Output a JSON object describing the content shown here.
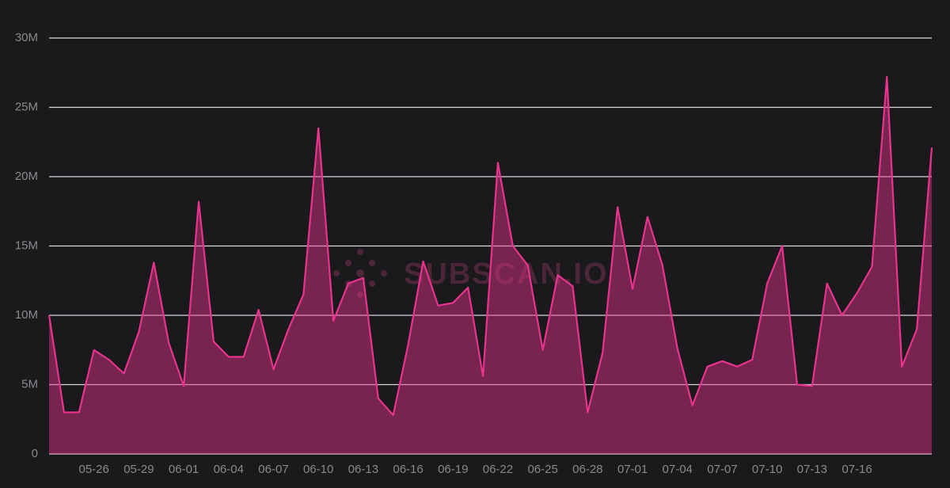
{
  "chart_data": {
    "type": "area",
    "watermark": "SUBSCAN.IO",
    "categories": [
      null,
      null,
      null,
      "05-26",
      null,
      null,
      "05-29",
      null,
      null,
      "06-01",
      null,
      null,
      "06-04",
      null,
      null,
      "06-07",
      null,
      null,
      "06-10",
      null,
      null,
      "06-13",
      null,
      null,
      "06-16",
      null,
      null,
      "06-19",
      null,
      null,
      "06-22",
      null,
      null,
      "06-25",
      null,
      null,
      "06-28",
      null,
      null,
      "07-01",
      null,
      null,
      "07-04",
      null,
      null,
      "07-07",
      null,
      null,
      "07-10",
      null,
      null,
      "07-13",
      null,
      null,
      "07-16",
      null,
      null,
      null,
      null,
      null
    ],
    "series": [
      {
        "color": "#e8338f",
        "values": [
          10000000,
          3000000,
          3000000,
          7500000,
          6800000,
          5800000,
          8800000,
          13800000,
          8000000,
          4900000,
          18200000,
          8100000,
          7000000,
          7000000,
          10400000,
          6100000,
          9000000,
          11500000,
          23500000,
          9600000,
          12300000,
          12700000,
          4000000,
          2800000,
          7900000,
          13900000,
          10700000,
          10900000,
          12000000,
          5600000,
          21000000,
          15000000,
          13600000,
          7500000,
          12900000,
          12100000,
          3000000,
          7300000,
          17800000,
          11900000,
          17100000,
          13600000,
          7600000,
          3500000,
          6300000,
          6700000,
          6300000,
          6800000,
          12300000,
          15000000,
          5000000,
          4900000,
          12300000,
          10000000,
          11600000,
          13500000,
          27200000,
          6300000,
          9000000,
          22100000
        ]
      }
    ],
    "ylim": [
      0,
      30000000
    ],
    "yticks": [
      {
        "value": 0,
        "label": "0"
      },
      {
        "value": 5000000,
        "label": "5M"
      },
      {
        "value": 10000000,
        "label": "10M"
      },
      {
        "value": 15000000,
        "label": "15M"
      },
      {
        "value": 20000000,
        "label": "20M"
      },
      {
        "value": 25000000,
        "label": "25M"
      },
      {
        "value": 30000000,
        "label": "30M"
      }
    ],
    "grid": true
  }
}
